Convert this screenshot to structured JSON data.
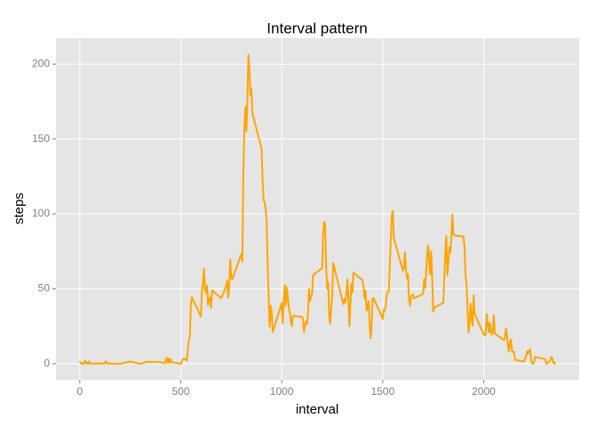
{
  "chart_data": {
    "type": "line",
    "title": "Interval pattern",
    "x_label": "interval",
    "y_label": "steps",
    "xlim": [
      -118,
      2473
    ],
    "ylim": [
      -10.7,
      217.3
    ],
    "xticks": [
      0,
      500,
      1000,
      1500,
      2000
    ],
    "yticks": [
      0,
      50,
      100,
      150,
      200
    ],
    "grid": true,
    "series": [
      {
        "color": "#FFA500",
        "x": [
          0,
          5,
          10,
          15,
          20,
          25,
          30,
          35,
          40,
          45,
          50,
          55,
          100,
          105,
          110,
          115,
          120,
          125,
          130,
          135,
          140,
          145,
          150,
          155,
          200,
          250,
          300,
          330,
          400,
          420,
          430,
          435,
          440,
          445,
          450,
          455,
          500,
          510,
          520,
          525,
          530,
          540,
          545,
          550,
          555,
          600,
          605,
          610,
          615,
          620,
          625,
          630,
          635,
          640,
          645,
          650,
          655,
          700,
          720,
          730,
          735,
          740,
          745,
          750,
          755,
          800,
          805,
          810,
          815,
          820,
          825,
          830,
          835,
          840,
          845,
          850,
          855,
          900,
          905,
          910,
          915,
          920,
          925,
          930,
          935,
          940,
          945,
          950,
          955,
          1000,
          1005,
          1010,
          1015,
          1020,
          1025,
          1030,
          1035,
          1040,
          1045,
          1050,
          1055,
          1100,
          1105,
          1110,
          1115,
          1120,
          1125,
          1130,
          1135,
          1140,
          1145,
          1150,
          1155,
          1200,
          1205,
          1210,
          1215,
          1220,
          1225,
          1230,
          1235,
          1240,
          1245,
          1250,
          1255,
          1300,
          1305,
          1310,
          1315,
          1320,
          1325,
          1330,
          1335,
          1340,
          1345,
          1350,
          1355,
          1400,
          1405,
          1410,
          1415,
          1420,
          1425,
          1430,
          1435,
          1440,
          1445,
          1450,
          1455,
          1500,
          1505,
          1510,
          1515,
          1520,
          1525,
          1530,
          1535,
          1540,
          1545,
          1550,
          1555,
          1600,
          1605,
          1610,
          1615,
          1620,
          1625,
          1630,
          1635,
          1640,
          1645,
          1650,
          1655,
          1700,
          1705,
          1710,
          1715,
          1720,
          1725,
          1730,
          1735,
          1740,
          1745,
          1750,
          1755,
          1800,
          1805,
          1810,
          1815,
          1820,
          1825,
          1830,
          1835,
          1840,
          1845,
          1850,
          1855,
          1900,
          1905,
          1910,
          1915,
          1920,
          1925,
          1930,
          1935,
          1940,
          1945,
          1950,
          1955,
          2000,
          2005,
          2010,
          2015,
          2020,
          2025,
          2030,
          2035,
          2040,
          2045,
          2050,
          2055,
          2100,
          2105,
          2110,
          2115,
          2120,
          2125,
          2130,
          2135,
          2140,
          2145,
          2150,
          2155,
          2200,
          2205,
          2210,
          2215,
          2220,
          2225,
          2230,
          2235,
          2240,
          2245,
          2250,
          2255,
          2300,
          2305,
          2310,
          2315,
          2320,
          2325,
          2330,
          2335,
          2340,
          2345,
          2350,
          2355
        ],
        "values": [
          1.7,
          0.3,
          0.1,
          0.2,
          0.1,
          2.1,
          0.5,
          0.9,
          0,
          1.5,
          0.3,
          0.1,
          0.3,
          0,
          0.2,
          0.3,
          0,
          1.1,
          1.8,
          0.2,
          0.2,
          0.3,
          0.3,
          0,
          0,
          1.5,
          0,
          1.3,
          1.2,
          0.3,
          4.1,
          0.7,
          3.5,
          0.8,
          3.1,
          1.1,
          0,
          3,
          3.3,
          3,
          2.1,
          16,
          18.3,
          39.5,
          44.5,
          31.5,
          49.3,
          53.8,
          63.5,
          50,
          47.1,
          52.2,
          39.3,
          44,
          44.2,
          37.4,
          49,
          43.8,
          49.9,
          55.3,
          44.3,
          52.3,
          69.5,
          57.8,
          56.2,
          73.4,
          68.2,
          129.4,
          157.5,
          171.2,
          155.4,
          177.3,
          206.2,
          195.9,
          179.6,
          183.4,
          167,
          143.5,
          124,
          109.1,
          108.1,
          103.7,
          95.9,
          66.2,
          45.2,
          24.8,
          38.8,
          35,
          21.1,
          40.6,
          27,
          42.4,
          52.7,
          38.9,
          50.8,
          44.3,
          37.4,
          34.7,
          28.3,
          25.1,
          31.9,
          31.4,
          29.7,
          21.3,
          25.5,
          28.4,
          26.5,
          33.4,
          50,
          42,
          44.6,
          46,
          59.2,
          63.9,
          87.6,
          94.8,
          92.8,
          63.4,
          50.2,
          54.5,
          32.4,
          26.5,
          37.7,
          45.1,
          67.3,
          42.3,
          39.9,
          43.3,
          41,
          46.2,
          56.4,
          42.8,
          25.1,
          40,
          53.5,
          47.3,
          60.8,
          55.8,
          51.1,
          43.6,
          48.7,
          35.5,
          37.5,
          41.8,
          27.5,
          17.1,
          26.1,
          43.6,
          43.8,
          30,
          36.1,
          35.5,
          38.8,
          46,
          47.8,
          48.1,
          65.3,
          82.9,
          98.7,
          102.1,
          84,
          62.1,
          64.1,
          74.5,
          63.2,
          56.9,
          59.8,
          43.9,
          38.6,
          44.7,
          45.5,
          46.2,
          43.7,
          46.6,
          56.3,
          50.7,
          61.2,
          72.7,
          78.9,
          68.9,
          59.7,
          75.1,
          56.5,
          34.8,
          37.5,
          40.7,
          58,
          74.7,
          85.3,
          59.3,
          67.8,
          77.7,
          74.2,
          85.3,
          99.5,
          86.6,
          85.6,
          84.9,
          77.8,
          58,
          53.4,
          36.3,
          20.7,
          27.4,
          40,
          30.2,
          25.5,
          45.7,
          33.5,
          19.6,
          19,
          19.3,
          33.3,
          26.8,
          21.2,
          27.3,
          21.3,
          19.5,
          21.3,
          32.3,
          20.2,
          15.9,
          17.2,
          23.5,
          19.2,
          12.5,
          8,
          14.7,
          16.3,
          8.7,
          7.8,
          8.1,
          2.6,
          1.5,
          3.7,
          4.8,
          8.5,
          7.1,
          8.7,
          9.8,
          2.2,
          0.3,
          0.1,
          1.6,
          4.6,
          3.3,
          2.8,
          0,
          0.8,
          1,
          1.6,
          2.6,
          4.7,
          3.3,
          0.6,
          0.2,
          1.1
        ]
      }
    ]
  }
}
